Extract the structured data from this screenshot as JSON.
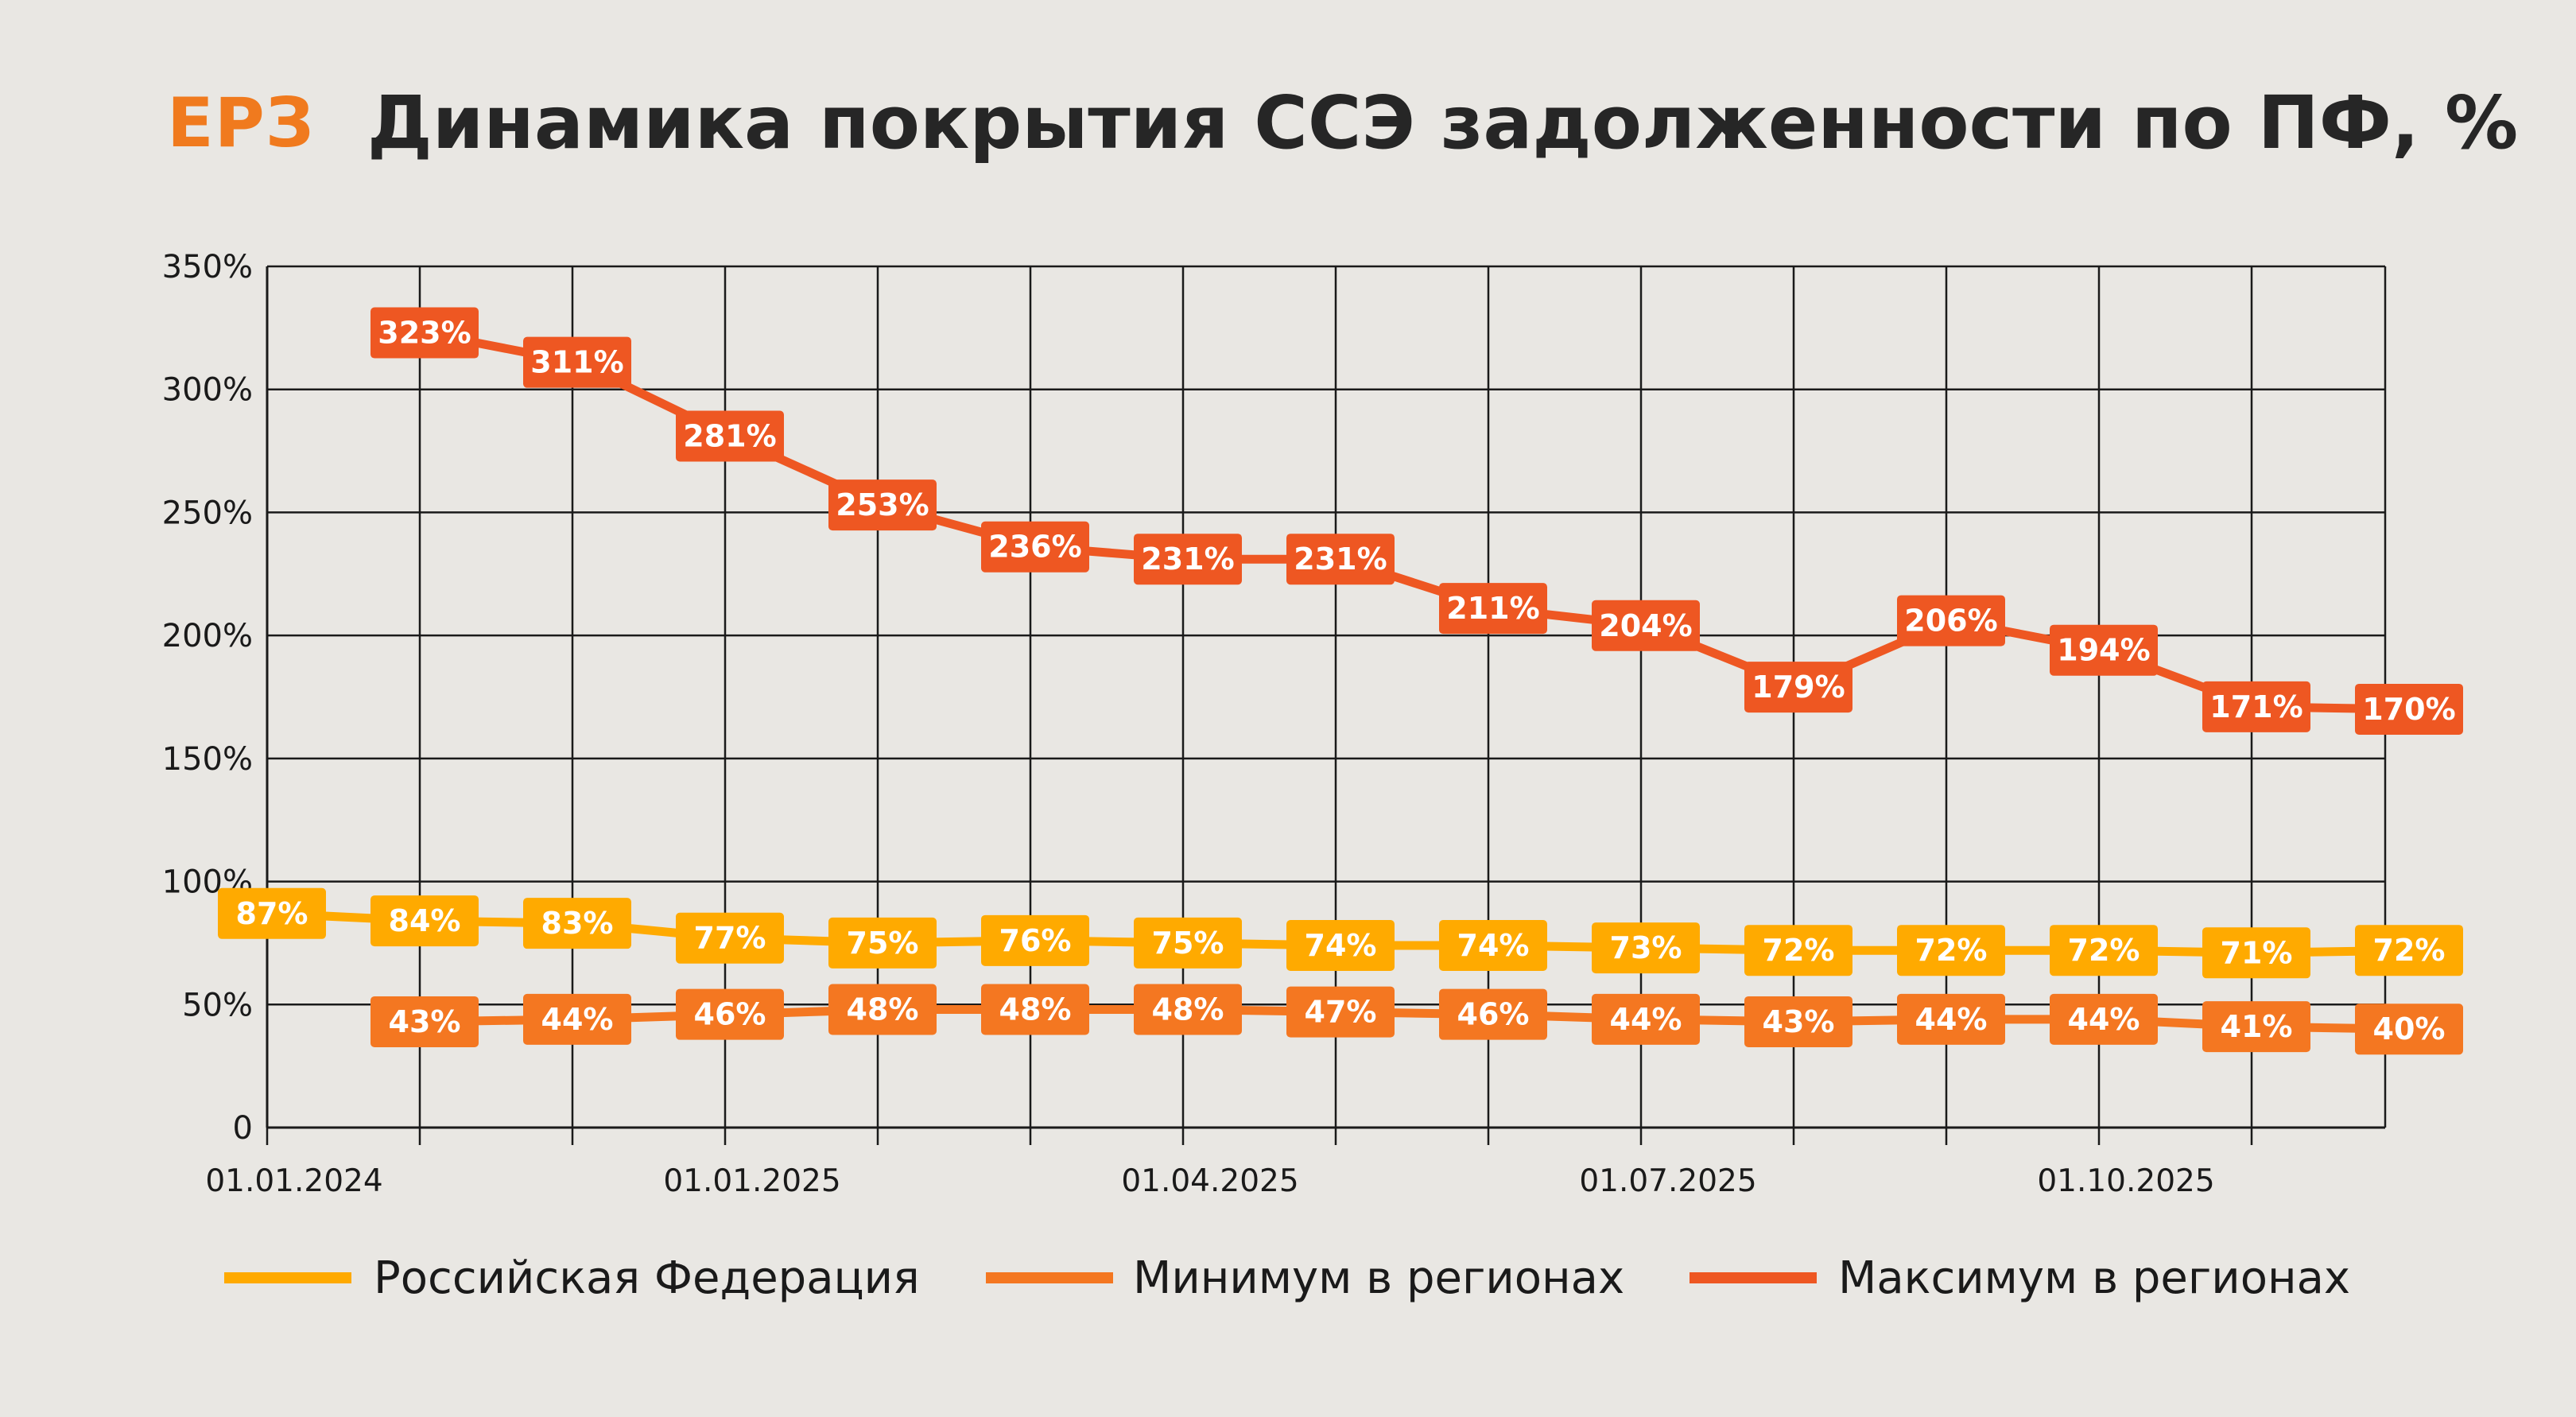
{
  "header": {
    "logo": "ЕРЗ",
    "title": "Динамика покрытия ССЭ задолженности по ПФ, %"
  },
  "chart_data": {
    "type": "line",
    "title": "Динамика покрытия ССЭ задолженности по ПФ, %",
    "ylim": [
      0,
      350
    ],
    "y_ticks": [
      "0",
      "50%",
      "100%",
      "150%",
      "200%",
      "250%",
      "300%",
      "350%"
    ],
    "x_tick_labels": [
      "01.01.2024",
      "01.01.2025",
      "01.04.2025",
      "01.07.2025",
      "01.10.2025"
    ],
    "grid": true,
    "legend_position": "bottom",
    "series": [
      {
        "name": "Российская Федерация",
        "color": "#FFAA00",
        "values": [
          87,
          84,
          83,
          77,
          75,
          76,
          75,
          74,
          74,
          73,
          72,
          72,
          72,
          71,
          72
        ],
        "labels": [
          "87%",
          "84%",
          "83%",
          "77%",
          "75%",
          "76%",
          "75%",
          "74%",
          "74%",
          "73%",
          "72%",
          "72%",
          "72%",
          "71%",
          "72%"
        ]
      },
      {
        "name": "Минимум в регионах",
        "color": "#F47721",
        "values": [
          null,
          43,
          44,
          46,
          48,
          48,
          48,
          47,
          46,
          44,
          43,
          44,
          44,
          41,
          40
        ],
        "labels": [
          null,
          "43%",
          "44%",
          "46%",
          "48%",
          "48%",
          "48%",
          "47%",
          "46%",
          "44%",
          "43%",
          "44%",
          "44%",
          "41%",
          "40%"
        ]
      },
      {
        "name": "Максимум в регионах",
        "color": "#EE5722",
        "values": [
          null,
          323,
          311,
          281,
          253,
          236,
          231,
          231,
          211,
          204,
          179,
          206,
          194,
          171,
          170
        ],
        "labels": [
          null,
          "323%",
          "311%",
          "281%",
          "253%",
          "236%",
          "231%",
          "231%",
          "211%",
          "204%",
          "179%",
          "206%",
          "194%",
          "171%",
          "170%"
        ]
      }
    ]
  }
}
